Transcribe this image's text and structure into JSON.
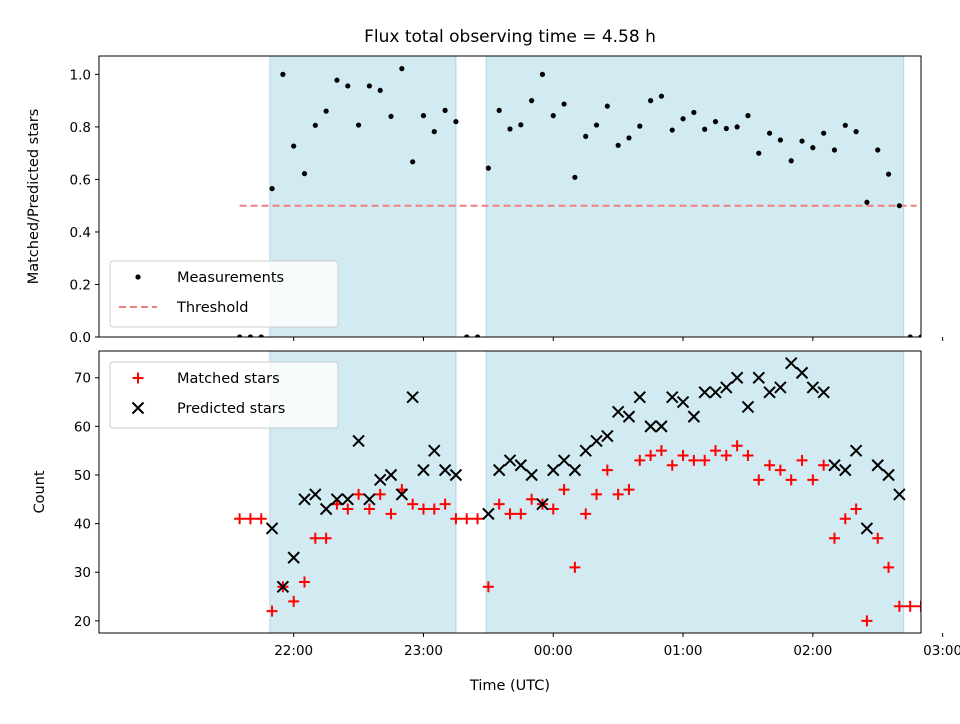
{
  "chart_data": [
    {
      "type": "scatter",
      "title": "Flux total observing time = 4.58 h",
      "xlabel": "",
      "ylabel": "Matched/Predicted stars",
      "xlim_minutes": [
        -90,
        290
      ],
      "ylim": [
        0,
        1.07
      ],
      "yticks": [
        0.0,
        0.2,
        0.4,
        0.6,
        0.8,
        1.0
      ],
      "ytick_labels": [
        "0.0",
        "0.2",
        "0.4",
        "0.6",
        "0.8",
        "1.0"
      ],
      "xtick_minutes": [
        0,
        60,
        120,
        180,
        240,
        300
      ],
      "shaded_intervals_minutes": [
        [
          -11,
          75
        ],
        [
          89,
          282
        ]
      ],
      "shade_color": "#add8e6",
      "threshold": {
        "name": "Threshold",
        "value": 0.5,
        "x_range_minutes": [
          -25,
          288
        ],
        "color": "#f08080"
      },
      "series": [
        {
          "name": "Measurements",
          "color": "#000000",
          "marker": "dot",
          "points": [
            [
              -25,
              0.0
            ],
            [
              -20,
              0.0
            ],
            [
              -15,
              0.0
            ],
            [
              -10,
              0.565
            ],
            [
              -5,
              1.0
            ],
            [
              0,
              0.727
            ],
            [
              5,
              0.622
            ],
            [
              10,
              0.806
            ],
            [
              15,
              0.86
            ],
            [
              20,
              0.978
            ],
            [
              25,
              0.956
            ],
            [
              30,
              0.807
            ],
            [
              35,
              0.956
            ],
            [
              40,
              0.939
            ],
            [
              45,
              0.84
            ],
            [
              50,
              1.022
            ],
            [
              55,
              0.667
            ],
            [
              60,
              0.843
            ],
            [
              65,
              0.782
            ],
            [
              70,
              0.863
            ],
            [
              75,
              0.82
            ],
            [
              80,
              0.0
            ],
            [
              85,
              0.0
            ],
            [
              90,
              0.643
            ],
            [
              95,
              0.863
            ],
            [
              100,
              0.792
            ],
            [
              105,
              0.808
            ],
            [
              110,
              0.9
            ],
            [
              115,
              1.0
            ],
            [
              120,
              0.843
            ],
            [
              125,
              0.887
            ],
            [
              130,
              0.608
            ],
            [
              135,
              0.764
            ],
            [
              140,
              0.807
            ],
            [
              145,
              0.879
            ],
            [
              150,
              0.73
            ],
            [
              155,
              0.758
            ],
            [
              160,
              0.803
            ],
            [
              165,
              0.9
            ],
            [
              170,
              0.917
            ],
            [
              175,
              0.788
            ],
            [
              180,
              0.831
            ],
            [
              185,
              0.855
            ],
            [
              190,
              0.791
            ],
            [
              195,
              0.82
            ],
            [
              200,
              0.794
            ],
            [
              205,
              0.8
            ],
            [
              210,
              0.843
            ],
            [
              215,
              0.7
            ],
            [
              220,
              0.776
            ],
            [
              225,
              0.75
            ],
            [
              230,
              0.671
            ],
            [
              235,
              0.746
            ],
            [
              240,
              0.721
            ],
            [
              245,
              0.776
            ],
            [
              250,
              0.712
            ],
            [
              255,
              0.806
            ],
            [
              260,
              0.782
            ],
            [
              265,
              0.513
            ],
            [
              270,
              0.712
            ],
            [
              275,
              0.62
            ],
            [
              280,
              0.5
            ],
            [
              285,
              0.0
            ],
            [
              290,
              0.0
            ]
          ]
        }
      ],
      "legend": {
        "position": "lower left",
        "entries": [
          "Measurements",
          "Threshold"
        ]
      }
    },
    {
      "type": "scatter",
      "title": "",
      "xlabel": "Time (UTC)",
      "ylabel": "Count",
      "xlim_minutes": [
        -90,
        290
      ],
      "ylim": [
        17.5,
        75.5
      ],
      "yticks": [
        20,
        30,
        40,
        50,
        60,
        70
      ],
      "ytick_labels": [
        "20",
        "30",
        "40",
        "50",
        "60",
        "70"
      ],
      "xtick_minutes": [
        0,
        60,
        120,
        180,
        240,
        300
      ],
      "xtick_labels": [
        "22:00",
        "23:00",
        "00:00",
        "01:00",
        "02:00",
        "03:00"
      ],
      "shaded_intervals_minutes": [
        [
          -11,
          75
        ],
        [
          89,
          282
        ]
      ],
      "shade_color": "#add8e6",
      "series": [
        {
          "name": "Matched stars",
          "color": "#ff0000",
          "marker": "plus",
          "points": [
            [
              -25,
              41
            ],
            [
              -20,
              41
            ],
            [
              -15,
              41
            ],
            [
              -10,
              22
            ],
            [
              -5,
              27
            ],
            [
              0,
              24
            ],
            [
              5,
              28
            ],
            [
              10,
              37
            ],
            [
              15,
              37
            ],
            [
              20,
              44
            ],
            [
              25,
              43
            ],
            [
              30,
              46
            ],
            [
              35,
              43
            ],
            [
              40,
              46
            ],
            [
              45,
              42
            ],
            [
              50,
              47
            ],
            [
              55,
              44
            ],
            [
              60,
              43
            ],
            [
              65,
              43
            ],
            [
              70,
              44
            ],
            [
              75,
              41
            ],
            [
              80,
              41
            ],
            [
              85,
              41
            ],
            [
              90,
              27
            ],
            [
              95,
              44
            ],
            [
              100,
              42
            ],
            [
              105,
              42
            ],
            [
              110,
              45
            ],
            [
              115,
              44
            ],
            [
              120,
              43
            ],
            [
              125,
              47
            ],
            [
              130,
              31
            ],
            [
              135,
              42
            ],
            [
              140,
              46
            ],
            [
              145,
              51
            ],
            [
              150,
              46
            ],
            [
              155,
              47
            ],
            [
              160,
              53
            ],
            [
              165,
              54
            ],
            [
              170,
              55
            ],
            [
              175,
              52
            ],
            [
              180,
              54
            ],
            [
              185,
              53
            ],
            [
              190,
              53
            ],
            [
              195,
              55
            ],
            [
              200,
              54
            ],
            [
              205,
              56
            ],
            [
              210,
              54
            ],
            [
              215,
              49
            ],
            [
              220,
              52
            ],
            [
              225,
              51
            ],
            [
              230,
              49
            ],
            [
              235,
              53
            ],
            [
              240,
              49
            ],
            [
              245,
              52
            ],
            [
              250,
              37
            ],
            [
              255,
              41
            ],
            [
              260,
              43
            ],
            [
              265,
              20
            ],
            [
              270,
              37
            ],
            [
              275,
              31
            ],
            [
              280,
              23
            ],
            [
              285,
              23
            ],
            [
              290,
              23
            ]
          ]
        },
        {
          "name": "Predicted stars",
          "color": "#000000",
          "marker": "x",
          "points": [
            [
              -10,
              39
            ],
            [
              -5,
              27
            ],
            [
              0,
              33
            ],
            [
              5,
              45
            ],
            [
              10,
              46
            ],
            [
              15,
              43
            ],
            [
              20,
              45
            ],
            [
              25,
              45
            ],
            [
              30,
              57
            ],
            [
              35,
              45
            ],
            [
              40,
              49
            ],
            [
              45,
              50
            ],
            [
              50,
              46
            ],
            [
              55,
              66
            ],
            [
              60,
              51
            ],
            [
              65,
              55
            ],
            [
              70,
              51
            ],
            [
              75,
              50
            ],
            [
              90,
              42
            ],
            [
              95,
              51
            ],
            [
              100,
              53
            ],
            [
              105,
              52
            ],
            [
              110,
              50
            ],
            [
              115,
              44
            ],
            [
              120,
              51
            ],
            [
              125,
              53
            ],
            [
              130,
              51
            ],
            [
              135,
              55
            ],
            [
              140,
              57
            ],
            [
              145,
              58
            ],
            [
              150,
              63
            ],
            [
              155,
              62
            ],
            [
              160,
              66
            ],
            [
              165,
              60
            ],
            [
              170,
              60
            ],
            [
              175,
              66
            ],
            [
              180,
              65
            ],
            [
              185,
              62
            ],
            [
              190,
              67
            ],
            [
              195,
              67
            ],
            [
              200,
              68
            ],
            [
              205,
              70
            ],
            [
              210,
              64
            ],
            [
              215,
              70
            ],
            [
              220,
              67
            ],
            [
              225,
              68
            ],
            [
              230,
              73
            ],
            [
              235,
              71
            ],
            [
              240,
              68
            ],
            [
              245,
              67
            ],
            [
              250,
              52
            ],
            [
              255,
              51
            ],
            [
              260,
              55
            ],
            [
              265,
              39
            ],
            [
              270,
              52
            ],
            [
              275,
              50
            ],
            [
              280,
              46
            ]
          ]
        }
      ],
      "legend": {
        "position": "upper left",
        "entries": [
          "Matched stars",
          "Predicted stars"
        ]
      }
    }
  ]
}
